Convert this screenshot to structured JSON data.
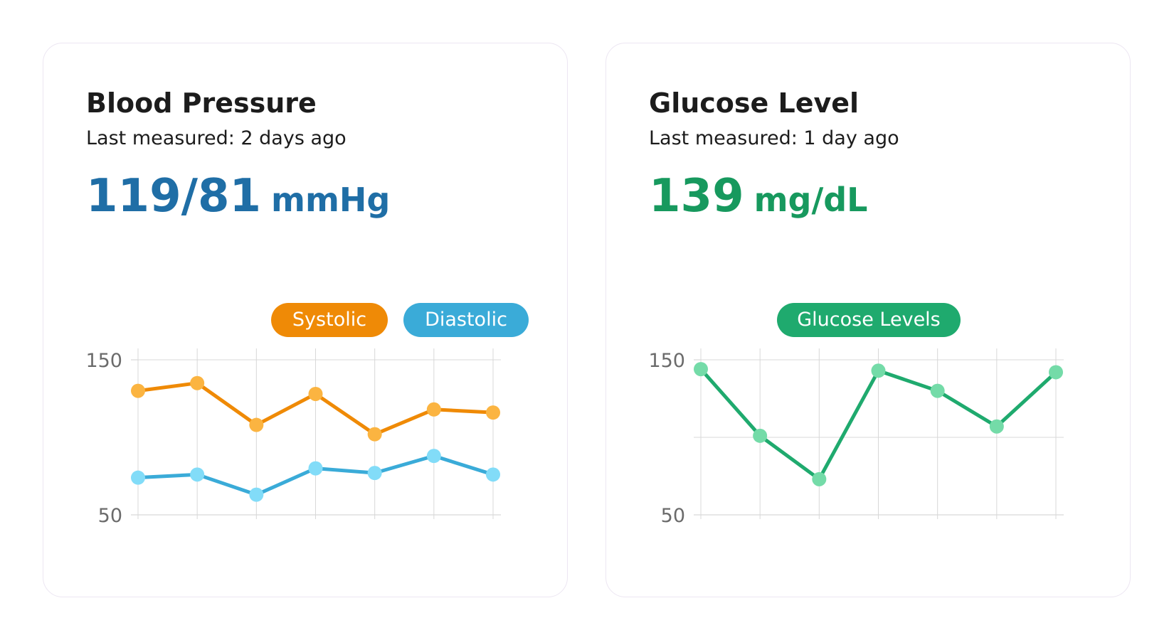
{
  "cards": [
    {
      "title": "Blood Pressure",
      "subtitle": "Last measured: 2 days ago",
      "value": "119/81",
      "unit": "mmHg",
      "accent": "#1f6ea6"
    },
    {
      "title": "Glucose Level",
      "subtitle": "Last measured: 1 day ago",
      "value": "139",
      "unit": "mg/dL",
      "accent": "#17995e"
    }
  ],
  "chart_data": [
    {
      "type": "line",
      "x": [
        1,
        2,
        3,
        4,
        5,
        6,
        7
      ],
      "ylim": [
        50,
        150
      ],
      "yticks": [
        "50",
        "150"
      ],
      "grid": true,
      "legend": "top-right",
      "series": [
        {
          "name": "Systolic",
          "values": [
            130,
            135,
            108,
            128,
            102,
            118,
            116
          ],
          "line_color": "#ef8a06",
          "point_color": "#fbb441"
        },
        {
          "name": "Diastolic",
          "values": [
            74,
            76,
            63,
            80,
            77,
            88,
            76
          ],
          "line_color": "#3aabd8",
          "point_color": "#82dcf8"
        }
      ]
    },
    {
      "type": "line",
      "x": [
        1,
        2,
        3,
        4,
        5,
        6,
        7
      ],
      "ylim": [
        50,
        150
      ],
      "yticks": [
        "50",
        "150"
      ],
      "grid": true,
      "legend": "top-center",
      "series": [
        {
          "name": "Glucose Levels",
          "values": [
            144,
            101,
            73,
            143,
            130,
            107,
            142
          ],
          "line_color": "#1faa6e",
          "point_color": "#74dba8"
        }
      ]
    }
  ]
}
